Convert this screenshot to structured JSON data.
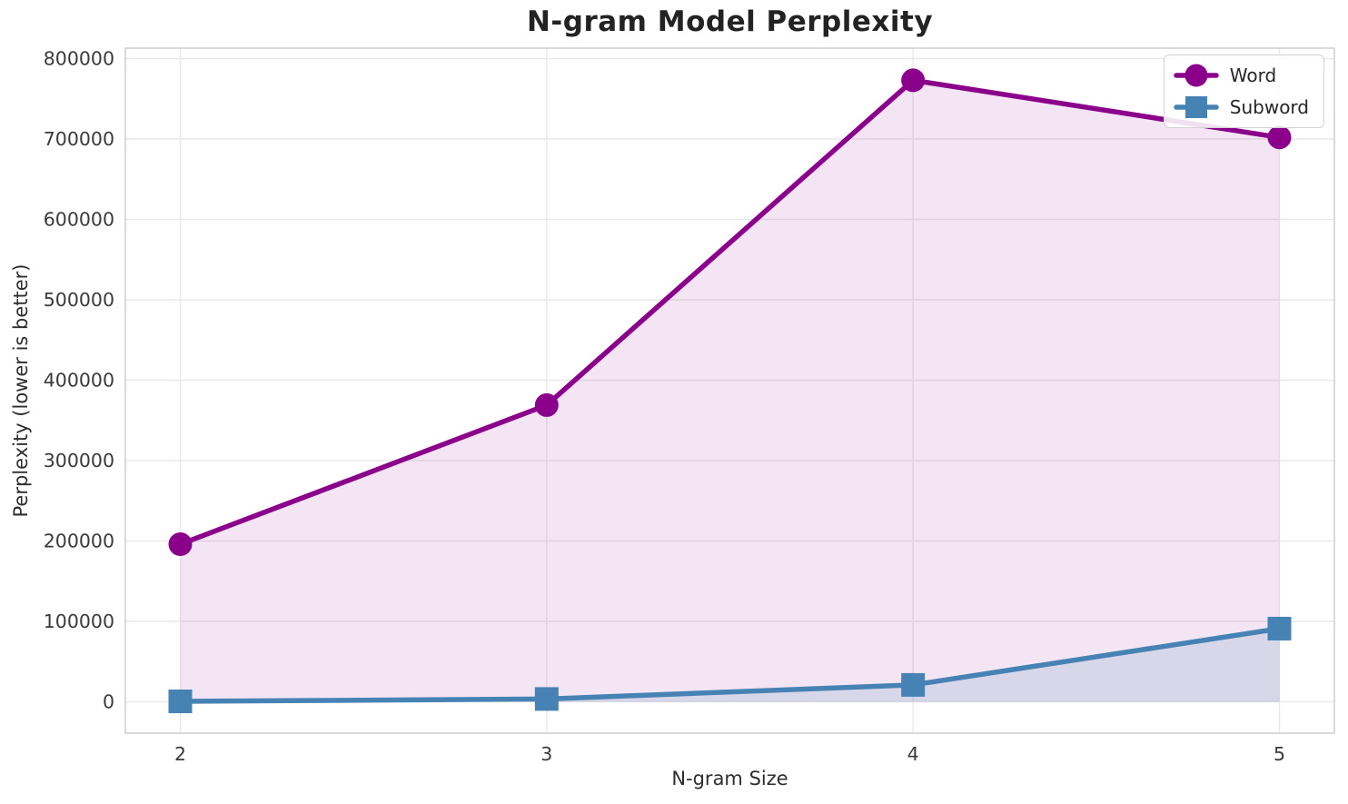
{
  "chart_data": {
    "type": "line",
    "title": "N-gram Model Perplexity",
    "xlabel": "N-gram Size",
    "ylabel": "Perplexity (lower is better)",
    "x": [
      2,
      3,
      4,
      5
    ],
    "xtick_labels": [
      "2",
      "3",
      "4",
      "5"
    ],
    "yticks": [
      0,
      100000,
      200000,
      300000,
      400000,
      500000,
      600000,
      700000,
      800000
    ],
    "ytick_labels": [
      "0",
      "100000",
      "200000",
      "300000",
      "400000",
      "500000",
      "600000",
      "700000",
      "800000"
    ],
    "xlim": [
      1.85,
      5.15
    ],
    "ylim": [
      -39000,
      813000
    ],
    "grid": true,
    "area_fill_baseline": 0,
    "legend_position": "upper right",
    "series": [
      {
        "name": "Word",
        "marker": "circle",
        "color": "#8B008B",
        "fill_opacity": 0.1,
        "values": [
          196000,
          369000,
          773000,
          702000
        ]
      },
      {
        "name": "Subword",
        "marker": "square",
        "color": "#4682B4",
        "fill_opacity": 0.15,
        "values": [
          500,
          3500,
          21000,
          91000
        ]
      }
    ]
  },
  "colors": {
    "background": "#ffffff",
    "gridline": "#e9e9e9",
    "spine": "#cbcbcb",
    "title_text": "#232323",
    "tick_text": "#3a3a3a",
    "label_text": "#2e2e2e"
  }
}
